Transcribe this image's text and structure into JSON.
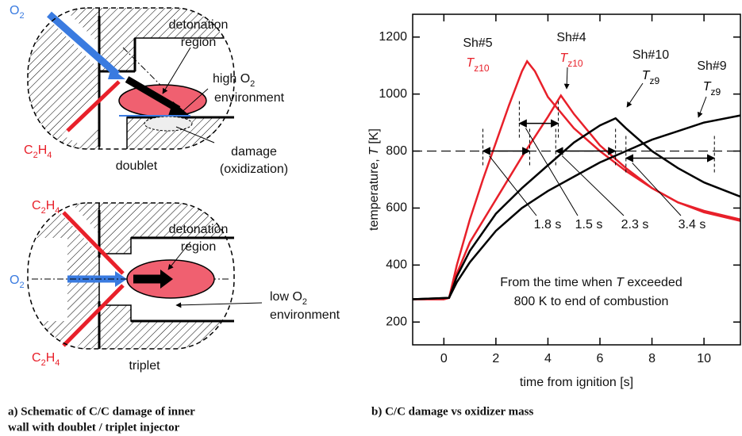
{
  "diagram": {
    "doublet": {
      "o2": [
        "O",
        "2"
      ],
      "detonation": [
        "detonation",
        "region"
      ],
      "high_o2": [
        [
          "high O",
          "2"
        ],
        "environment"
      ],
      "c2h4": [
        "C",
        "2",
        "H",
        "4"
      ],
      "damage": [
        "damage",
        "(oxidization)"
      ],
      "caption": "doublet"
    },
    "triplet": {
      "c2h4_top": [
        "C",
        "2",
        "H",
        "4"
      ],
      "detonation": [
        "detonation",
        "region"
      ],
      "o2": [
        "O",
        "2"
      ],
      "low_o2": [
        [
          "low O",
          "2"
        ],
        "environment"
      ],
      "c2h4_bottom": [
        "C",
        "2",
        "H",
        "4"
      ],
      "caption": "triplet"
    },
    "caption": [
      "a) Schematic of C/C damage of inner",
      "wall with doublet / triplet injector"
    ]
  },
  "chart_data": {
    "type": "line",
    "caption": "b) C/C damage vs oxidizer mass",
    "xlabel": "time from ignition  [s]",
    "ylabel": {
      "text": "temperature, ",
      "var": "T",
      "unit": " [K]"
    },
    "xlim": [
      -1.2,
      11.4
    ],
    "ylim": [
      120,
      1280
    ],
    "xticks": [
      0,
      2,
      4,
      6,
      8,
      10
    ],
    "yticks": [
      200,
      400,
      600,
      800,
      1000,
      1200
    ],
    "threshold": 800,
    "series": [
      {
        "name": "Sh#5",
        "var": "T",
        "sub": "z10",
        "color": "#e8202a",
        "x": [
          -1.2,
          0,
          0.2,
          0.5,
          1,
          1.5,
          2,
          2.5,
          3,
          3.2,
          3.5,
          4,
          5,
          6,
          7,
          8,
          9,
          10,
          11.4
        ],
        "values": [
          280,
          280,
          285,
          400,
          560,
          700,
          830,
          960,
          1080,
          1115,
          1080,
          990,
          880,
          800,
          730,
          670,
          620,
          585,
          555
        ]
      },
      {
        "name": "Sh#4",
        "var": "T",
        "sub": "z10",
        "color": "#e8202a",
        "x": [
          -1.2,
          0,
          0.2,
          0.5,
          1,
          2,
          3,
          4,
          4.5,
          5,
          6,
          7,
          8,
          9,
          10,
          11.4
        ],
        "values": [
          280,
          280,
          285,
          370,
          480,
          630,
          780,
          920,
          995,
          930,
          820,
          740,
          670,
          620,
          590,
          560
        ]
      },
      {
        "name": "Sh#10",
        "var": "T",
        "sub": "z9",
        "color": "#000000",
        "x": [
          -1.2,
          0.2,
          0.5,
          1,
          2,
          3,
          4,
          5,
          6,
          6.6,
          7,
          8,
          9,
          10,
          11.4
        ],
        "values": [
          280,
          285,
          360,
          450,
          580,
          670,
          750,
          830,
          890,
          915,
          880,
          800,
          740,
          690,
          640
        ]
      },
      {
        "name": "Sh#9",
        "var": "T",
        "sub": "z9",
        "color": "#000000",
        "x": [
          -1.2,
          0.2,
          0.5,
          1,
          2,
          3,
          4,
          5,
          6,
          7,
          8,
          9,
          10,
          11.4
        ],
        "values": [
          280,
          285,
          340,
          410,
          520,
          600,
          660,
          710,
          760,
          800,
          840,
          870,
          900,
          925
        ]
      }
    ],
    "durations": [
      {
        "value": 1.8,
        "label": "1.8 s",
        "end": 3.3,
        "level": 800
      },
      {
        "value": 1.5,
        "label": "1.5 s",
        "end": 4.4,
        "level": 897
      },
      {
        "value": 2.3,
        "label": "2.3 s",
        "end": 6.6,
        "level": 800
      },
      {
        "value": 3.4,
        "label": "3.4 s",
        "end": 10.4,
        "level": 775
      }
    ],
    "note": {
      "before": "From the time when ",
      "var": "T",
      "after": " exceeded",
      "line2": "800 K to end of combustion"
    }
  }
}
